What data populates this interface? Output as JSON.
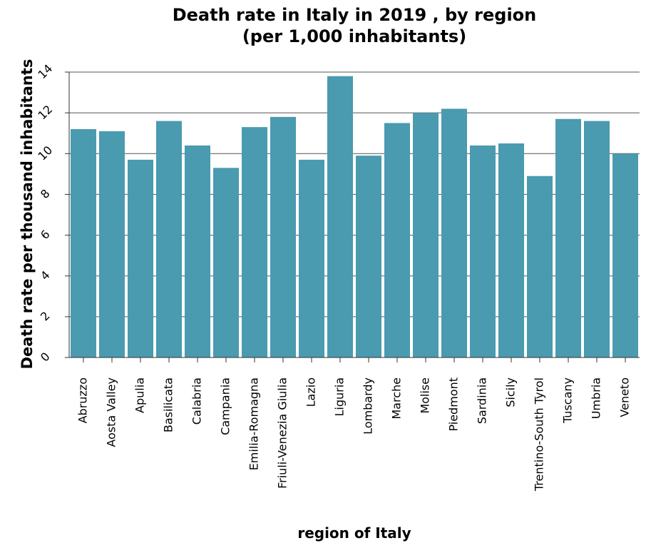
{
  "chart_data": {
    "type": "bar",
    "title": [
      "Death rate in Italy in 2019 , by region",
      "(per 1,000 inhabitants)"
    ],
    "xlabel": "region of Italy",
    "ylabel": "Death rate per thousand inhabitants",
    "ylim": [
      0,
      14
    ],
    "yticks": [
      "0",
      "2",
      "4",
      "6",
      "8",
      "10",
      "12",
      "14"
    ],
    "grid": true,
    "bar_color": "#4a9ab0",
    "categories": [
      "Abruzzo",
      "Aosta Valley",
      "Apulia",
      "Basilicata",
      "Calabria",
      "Campania",
      "Emilia-Romagna",
      "Friuli-Venezia Giulia",
      "Lazio",
      "Liguria",
      "Lombardy",
      "Marche",
      "Molise",
      "Piedmont",
      "Sardinia",
      "Sicily",
      "Trentino-South Tyrol",
      "Tuscany",
      "Umbria",
      "Veneto"
    ],
    "values": [
      11.2,
      11.1,
      9.7,
      11.6,
      10.4,
      9.3,
      11.3,
      11.8,
      9.7,
      13.8,
      9.9,
      11.5,
      12.0,
      12.2,
      10.4,
      10.5,
      8.9,
      11.7,
      11.6,
      10.0
    ]
  }
}
